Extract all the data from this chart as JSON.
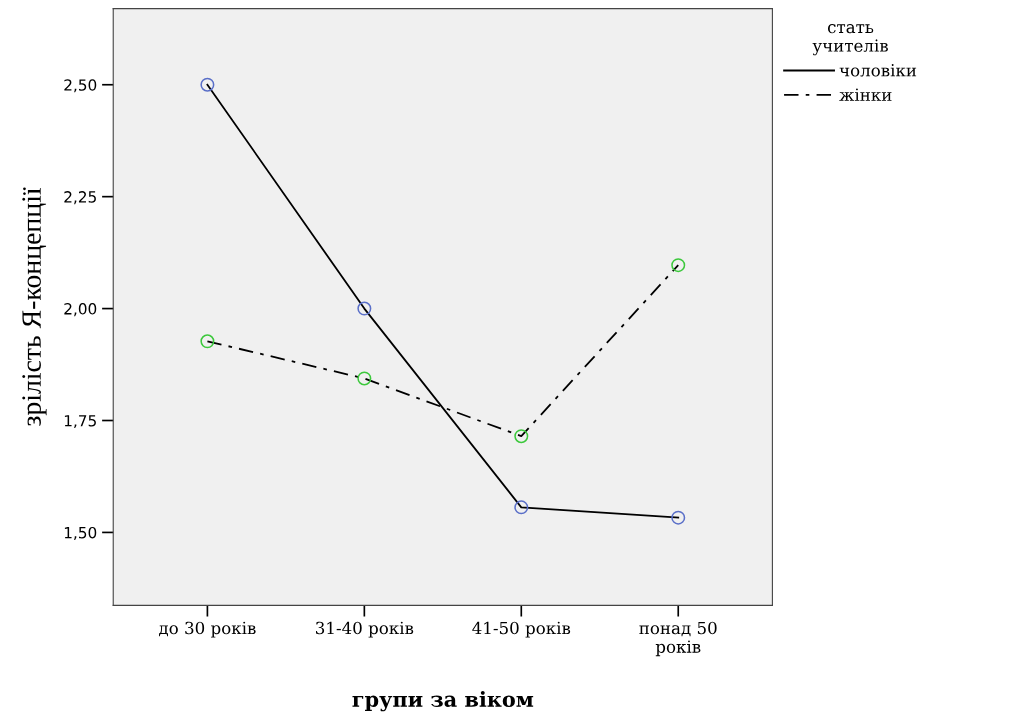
{
  "chart_data": {
    "type": "line",
    "xlabel": "групи за віком",
    "ylabel": "зрілість Я-концепції",
    "legend_title": "стать\nучителів",
    "categories": [
      "до 30 років",
      "31-40 років",
      "41-50 років",
      "понад 50\nроків"
    ],
    "series": [
      {
        "name": "чоловіки",
        "color": "#5a6fc8",
        "line_style": "solid",
        "values": [
          2.5,
          2.0,
          1.556,
          1.533
        ]
      },
      {
        "name": "жінки",
        "color": "#3cc83c",
        "line_style": "dashdot",
        "values": [
          1.927,
          1.844,
          1.715,
          2.097
        ]
      }
    ],
    "ylim": [
      1.337,
      2.67
    ],
    "yticks": [
      {
        "value": 1.5,
        "label": "1,50"
      },
      {
        "value": 1.75,
        "label": "1,75"
      },
      {
        "value": 2.0,
        "label": "2,00"
      },
      {
        "value": 2.25,
        "label": "2,25"
      },
      {
        "value": 2.5,
        "label": "2,50"
      }
    ],
    "marker": "circle",
    "grid": false,
    "legend": "top right"
  }
}
